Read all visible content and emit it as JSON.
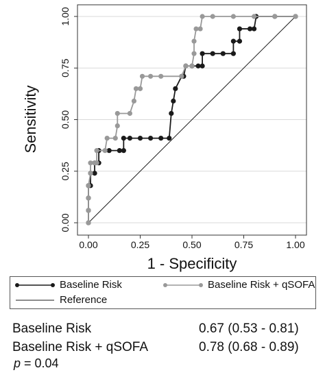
{
  "chart_data": {
    "type": "line",
    "xlabel": "1 - Specificity",
    "ylabel": "Sensitivity",
    "xlim": [
      0,
      1
    ],
    "ylim": [
      0,
      1
    ],
    "x_ticks": [
      "0.00",
      "0.25",
      "0.50",
      "0.75",
      "1.00"
    ],
    "y_ticks": [
      "0.00",
      "0.25",
      "0.50",
      "0.75",
      "1.00"
    ],
    "grid": "horizontal",
    "legend_position": "bottom",
    "series": [
      {
        "name": "Baseline Risk",
        "color": "#1a1a1a",
        "marker": "circle",
        "points": [
          [
            0,
            0
          ],
          [
            0,
            0.06
          ],
          [
            0,
            0.12
          ],
          [
            0,
            0.18
          ],
          [
            0.01,
            0.18
          ],
          [
            0.01,
            0.24
          ],
          [
            0.03,
            0.24
          ],
          [
            0.03,
            0.29
          ],
          [
            0.05,
            0.29
          ],
          [
            0.05,
            0.35
          ],
          [
            0.1,
            0.35
          ],
          [
            0.15,
            0.35
          ],
          [
            0.17,
            0.35
          ],
          [
            0.17,
            0.41
          ],
          [
            0.2,
            0.41
          ],
          [
            0.25,
            0.41
          ],
          [
            0.3,
            0.41
          ],
          [
            0.35,
            0.41
          ],
          [
            0.39,
            0.41
          ],
          [
            0.4,
            0.53
          ],
          [
            0.41,
            0.59
          ],
          [
            0.42,
            0.65
          ],
          [
            0.45,
            0.71
          ],
          [
            0.46,
            0.71
          ],
          [
            0.47,
            0.76
          ],
          [
            0.5,
            0.76
          ],
          [
            0.53,
            0.76
          ],
          [
            0.55,
            0.76
          ],
          [
            0.55,
            0.82
          ],
          [
            0.6,
            0.82
          ],
          [
            0.65,
            0.82
          ],
          [
            0.7,
            0.82
          ],
          [
            0.7,
            0.88
          ],
          [
            0.73,
            0.88
          ],
          [
            0.73,
            0.94
          ],
          [
            0.78,
            0.94
          ],
          [
            0.8,
            0.94
          ],
          [
            0.81,
            1
          ],
          [
            0.9,
            1
          ],
          [
            1,
            1
          ]
        ]
      },
      {
        "name": "Baseline Risk + qSOFA",
        "color": "#999999",
        "marker": "circle",
        "points": [
          [
            0,
            0
          ],
          [
            0,
            0.06
          ],
          [
            0,
            0.12
          ],
          [
            0,
            0.18
          ],
          [
            0.01,
            0.24
          ],
          [
            0.01,
            0.29
          ],
          [
            0.03,
            0.29
          ],
          [
            0.04,
            0.29
          ],
          [
            0.04,
            0.35
          ],
          [
            0.08,
            0.35
          ],
          [
            0.09,
            0.41
          ],
          [
            0.13,
            0.41
          ],
          [
            0.14,
            0.47
          ],
          [
            0.14,
            0.53
          ],
          [
            0.2,
            0.53
          ],
          [
            0.22,
            0.59
          ],
          [
            0.23,
            0.65
          ],
          [
            0.25,
            0.65
          ],
          [
            0.26,
            0.71
          ],
          [
            0.3,
            0.71
          ],
          [
            0.35,
            0.71
          ],
          [
            0.45,
            0.71
          ],
          [
            0.47,
            0.76
          ],
          [
            0.5,
            0.76
          ],
          [
            0.51,
            0.82
          ],
          [
            0.51,
            0.88
          ],
          [
            0.52,
            0.94
          ],
          [
            0.54,
            0.94
          ],
          [
            0.55,
            1
          ],
          [
            0.6,
            1
          ],
          [
            0.7,
            1
          ],
          [
            0.8,
            1
          ],
          [
            0.9,
            1
          ],
          [
            1,
            1
          ]
        ]
      },
      {
        "name": "Reference",
        "color": "#1a1a1a",
        "marker": "none",
        "points": [
          [
            0,
            0
          ],
          [
            1,
            1
          ]
        ]
      }
    ]
  },
  "stats": [
    {
      "label": "Baseline Risk",
      "value": "0.67 (0.53 - 0.81)"
    },
    {
      "label": "Baseline Risk + qSOFA",
      "value": "0.78 (0.68 - 0.89)"
    }
  ],
  "pvalue": {
    "symbol": "p",
    "text": " = 0.04"
  }
}
